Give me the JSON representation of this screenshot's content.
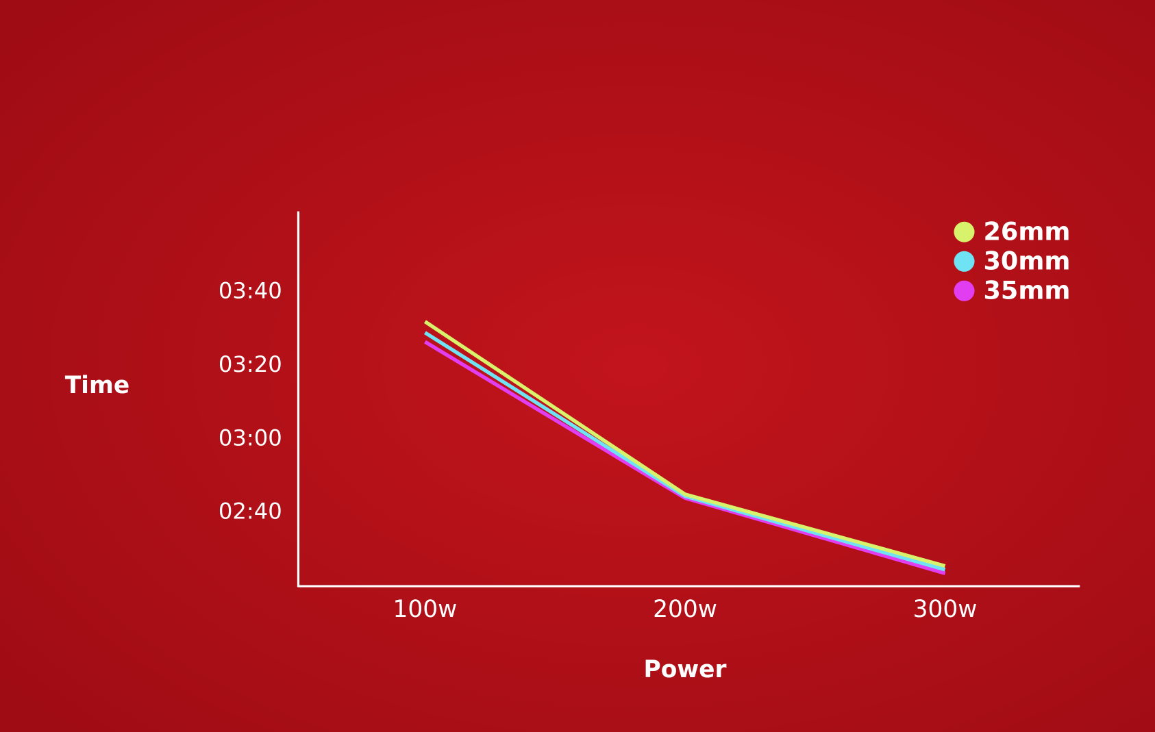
{
  "chart_data": {
    "type": "line",
    "x_label": "Power",
    "y_label": "Time",
    "categories": [
      "100w",
      "200w",
      "300w"
    ],
    "series": [
      {
        "name": "26mm",
        "color": "#d8f26c",
        "values": [
          212,
          165,
          145.5
        ]
      },
      {
        "name": "30mm",
        "color": "#6fe2f4",
        "values": [
          209,
          164.5,
          144.5
        ]
      },
      {
        "name": "35mm",
        "color": "#e13ef2",
        "values": [
          206.5,
          164,
          143.5
        ]
      }
    ],
    "ylim": [
      140,
      242
    ],
    "yticks": [
      {
        "value": 160,
        "label": "02:40"
      },
      {
        "value": 180,
        "label": "03:00"
      },
      {
        "value": 200,
        "label": "03:20"
      },
      {
        "value": 220,
        "label": "03:40"
      }
    ],
    "grid": false,
    "legend": "top-right"
  }
}
